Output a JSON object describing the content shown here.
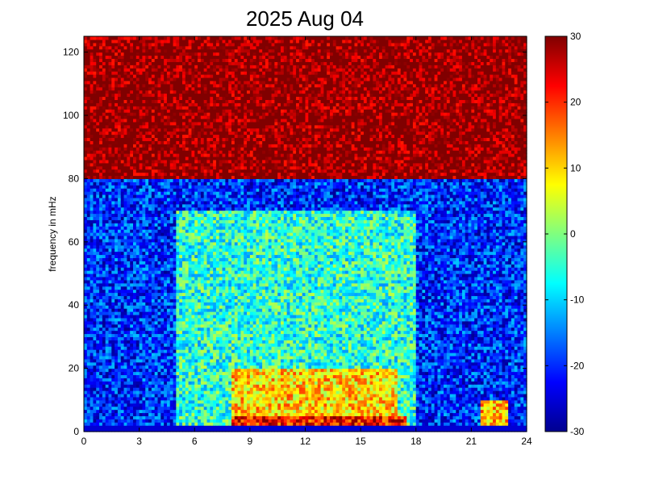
{
  "chart_data": {
    "type": "heatmap",
    "title": "2025 Aug 04",
    "xlabel": "",
    "ylabel": "frequency in mHz",
    "xlim": [
      0,
      24
    ],
    "ylim": [
      0,
      125
    ],
    "x_ticks": [
      "0",
      "3",
      "6",
      "9",
      "12",
      "15",
      "18",
      "21",
      "24"
    ],
    "y_ticks": [
      "0",
      "20",
      "40",
      "60",
      "80",
      "100",
      "120"
    ],
    "colorbar": {
      "min": -30,
      "max": 30,
      "ticks": [
        "-30",
        "-20",
        "-10",
        "0",
        "10",
        "20",
        "30"
      ],
      "colormap": "jet"
    },
    "grid": false,
    "description_of_values": "Spectral power (colorbar units) vs time (hours 0-24) and frequency (mHz 0-125). High values (~30) dominate above ~80 mHz; values near -20 in the 40-80 mHz band at night; elevated values (0 to 15) below ~60 mHz between hours 5 and 18, highest (~20-25) below 8 mHz around hours 8-18 and 22.",
    "regions": [
      {
        "t_start": 0,
        "t_end": 24,
        "f_start": 80,
        "f_end": 125,
        "value": 30
      },
      {
        "t_start": 0,
        "t_end": 5,
        "f_start": 0,
        "f_end": 80,
        "value": -20
      },
      {
        "t_start": 5,
        "t_end": 18,
        "f_start": 0,
        "f_end": 70,
        "value": -5
      },
      {
        "t_start": 8,
        "t_end": 17,
        "f_start": 0,
        "f_end": 20,
        "value": 10
      },
      {
        "t_start": 8,
        "t_end": 17.5,
        "f_start": 0,
        "f_end": 5,
        "value": 22
      },
      {
        "t_start": 18,
        "t_end": 24,
        "f_start": 0,
        "f_end": 80,
        "value": -20
      },
      {
        "t_start": 21.5,
        "t_end": 23,
        "f_start": 0,
        "f_end": 10,
        "value": 12
      }
    ]
  }
}
